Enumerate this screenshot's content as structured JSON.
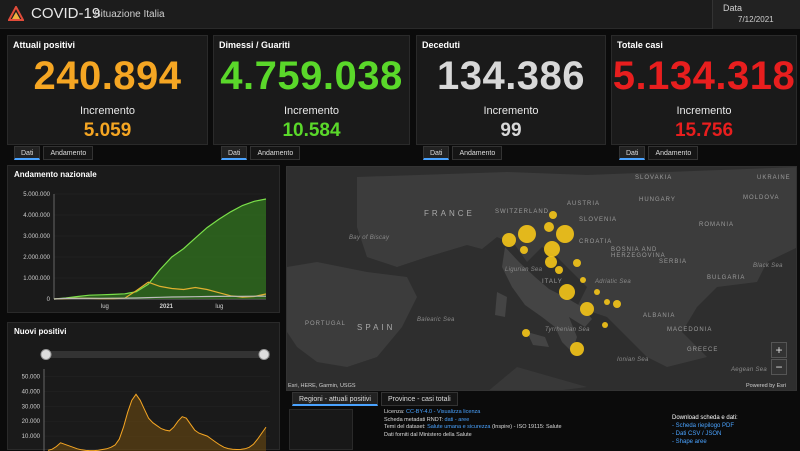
{
  "header": {
    "title": "COVID-19",
    "subtitle": "Situazione Italia",
    "date_label": "Data",
    "date_value": "7/12/2021"
  },
  "cards": [
    {
      "title": "Attuali positivi",
      "value": "240.894",
      "inc_label": "Incremento",
      "increment": "5.059",
      "color": "#f5a623"
    },
    {
      "title": "Dimessi / Guariti",
      "value": "4.759.038",
      "inc_label": "Incremento",
      "increment": "10.584",
      "color": "#5ad82a"
    },
    {
      "title": "Deceduti",
      "value": "134.386",
      "inc_label": "Incremento",
      "increment": "99",
      "color": "#d8d8d8"
    },
    {
      "title": "Totale casi",
      "value": "5.134.318",
      "inc_label": "Incremento",
      "increment": "15.756",
      "color": "#e81e1e"
    }
  ],
  "card_tabs": {
    "dati": "Dati",
    "andamento": "Andamento"
  },
  "trend_panel": {
    "title": "Andamento nazionale",
    "chart_data": {
      "type": "area",
      "y_ticks": [
        "5.000.000",
        "4.000.000",
        "3.000.000",
        "2.000.000",
        "1.000.000",
        "0"
      ],
      "x_ticks": [
        "lug",
        "2021",
        "lug"
      ],
      "ylim": [
        0,
        5000000
      ],
      "series": [
        {
          "values": [
            0,
            50000,
            120000,
            180000,
            200000,
            220000,
            250000,
            350000,
            700000,
            1400000,
            2000000,
            2400000,
            2900000,
            3400000,
            3800000,
            4150000,
            4450000,
            4650000,
            4760000
          ],
          "color": "#7be04a"
        },
        {
          "values": [
            0,
            20000,
            40000,
            30000,
            20000,
            15000,
            40000,
            400000,
            800000,
            600000,
            500000,
            450000,
            550000,
            450000,
            300000,
            150000,
            90000,
            120000,
            240000
          ],
          "color": "#e0b030"
        },
        {
          "values": [
            0,
            30000,
            35000,
            35000,
            35000,
            36000,
            38000,
            50000,
            65000,
            80000,
            95000,
            100000,
            110000,
            120000,
            126000,
            128000,
            130000,
            132000,
            134000
          ],
          "color": "#bbbbbb"
        }
      ]
    }
  },
  "new_panel": {
    "title": "Nuovi positivi",
    "chart_data": {
      "type": "line",
      "y_ticks": [
        "50.000",
        "40.000",
        "30.000",
        "20.000",
        "10.000"
      ],
      "ylim": [
        0,
        55000
      ],
      "values": [
        500,
        1200,
        3000,
        5500,
        4500,
        3500,
        2500,
        1500,
        800,
        400,
        250,
        300,
        500,
        1000,
        1500,
        2500,
        4000,
        8000,
        16000,
        26000,
        34000,
        38000,
        34000,
        28000,
        22000,
        19000,
        17000,
        15000,
        14000,
        13500,
        16000,
        20000,
        23000,
        22000,
        18000,
        14000,
        12000,
        11000,
        10000,
        8000,
        6000,
        4000,
        2500,
        1600,
        1200,
        1000,
        1100,
        1500,
        2500,
        4500,
        8000,
        12000,
        16000
      ],
      "color": "#f5a623"
    }
  },
  "map": {
    "labels": {
      "france": "FRANCE",
      "spain": "SPAIN",
      "portugal": "PORTUGAL",
      "switzerland": "SWITZERLAND",
      "austria": "AUSTRIA",
      "slovenia": "SLOVENIA",
      "croatia": "CROATIA",
      "bosnia": "BOSNIA AND HERZEGOVINA",
      "serbia": "SERBIA",
      "romania": "ROMANIA",
      "moldova": "MOLDOVA",
      "ukraine": "UKRAINE",
      "bulgaria": "BULGARIA",
      "albania": "ALBANIA",
      "macedonia": "MACEDONIA",
      "greece": "GREECE",
      "italy": "ITALY",
      "slovakia": "SLOVAKIA",
      "hungary": "HUNGARY",
      "bay_biscay": "Bay of Biscay",
      "adriatic": "Adriatic Sea",
      "ligurian": "Ligurian Sea",
      "tyrrhenian": "Tyrrhenian Sea",
      "ionian": "Ionian Sea",
      "aegean": "Aegean Sea",
      "balearic": "Balearic Sea",
      "black": "Black Sea"
    },
    "attribution": "Esri, HERE, Garmin, USGS",
    "powered": "Powered by Esri",
    "zoom_in": "+",
    "zoom_out": "−"
  },
  "bottom_tabs": {
    "regioni": "Regioni - attuali positivi",
    "province": "Province - casi totali"
  },
  "info": {
    "licenza_label": "Licenza:",
    "licenza_link": "CC-BY-4.0 - Visualizza licenza",
    "scheda_label": "Scheda metadati RNDT:",
    "scheda_link": "dati - aree",
    "temi_label": "Temi del dataset:",
    "temi_link": "Salute umana e sicurezza",
    "temi_rest": "(Inspire) - ISO 19115: Salute",
    "fonte": "Dati forniti dal Ministero della Salute"
  },
  "downloads": {
    "title": "Download scheda e dati:",
    "items": [
      "- Scheda riepilogo PDF",
      "- Dati CSV / JSON",
      "- Shape aree"
    ]
  }
}
